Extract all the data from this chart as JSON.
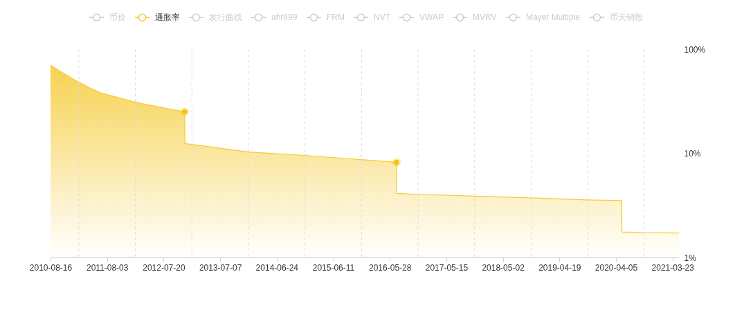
{
  "chart_data": {
    "type": "area",
    "legend": "top",
    "log": "y",
    "x": [
      "2010-08-16",
      "2010-11-09",
      "2011-02-04",
      "2011-04-30",
      "2011-06-28",
      "2012-01-24",
      "2012-06-21",
      "2012-11-28",
      "2012-11-29",
      "2013-12-31",
      "2014-12-13",
      "2015-11-30",
      "2016-07-09",
      "2016-07-10",
      "2016-11-16",
      "2018-02-19",
      "2018-10-22",
      "2019-10-08",
      "2020-05-11",
      "2020-05-12",
      "2020-09-21",
      "2021-05-02"
    ],
    "series": [
      {
        "name": "币价",
        "color": "#cccccc",
        "values": [
          null,
          null,
          null,
          null,
          null,
          null,
          null,
          null,
          null,
          null,
          null,
          null,
          null,
          null,
          null,
          null,
          null,
          null,
          null,
          null,
          null,
          null
        ]
      },
      {
        "name": "通胀率",
        "color": "#f5ca31",
        "values": [
          70,
          58,
          48.5,
          41.5,
          38,
          31,
          27.8,
          25,
          12.4,
          10.3,
          9.55,
          8.7,
          8.2,
          4.12,
          4.04,
          3.84,
          3.73,
          3.57,
          3.52,
          1.76,
          1.73,
          1.72
        ]
      },
      {
        "name": "发行曲线",
        "color": "#cccccc",
        "values": [
          null,
          null,
          null,
          null,
          null,
          null,
          null,
          null,
          null,
          null,
          null,
          null,
          null,
          null,
          null,
          null,
          null,
          null,
          null,
          null,
          null,
          null
        ]
      },
      {
        "name": "ahr999",
        "color": "#cccccc",
        "values": [
          null,
          null,
          null,
          null,
          null,
          null,
          null,
          null,
          null,
          null,
          null,
          null,
          null,
          null,
          null,
          null,
          null,
          null,
          null,
          null,
          null,
          null
        ]
      },
      {
        "name": "FRM",
        "color": "#cccccc",
        "values": [
          null,
          null,
          null,
          null,
          null,
          null,
          null,
          null,
          null,
          null,
          null,
          null,
          null,
          null,
          null,
          null,
          null,
          null,
          null,
          null,
          null,
          null
        ]
      },
      {
        "name": "NVT",
        "color": "#cccccc",
        "values": [
          null,
          null,
          null,
          null,
          null,
          null,
          null,
          null,
          null,
          null,
          null,
          null,
          null,
          null,
          null,
          null,
          null,
          null,
          null,
          null,
          null,
          null
        ]
      },
      {
        "name": "VWAP",
        "color": "#cccccc",
        "values": [
          null,
          null,
          null,
          null,
          null,
          null,
          null,
          null,
          null,
          null,
          null,
          null,
          null,
          null,
          null,
          null,
          null,
          null,
          null,
          null,
          null,
          null
        ]
      },
      {
        "name": "MVRV",
        "color": "#cccccc",
        "values": [
          null,
          null,
          null,
          null,
          null,
          null,
          null,
          null,
          null,
          null,
          null,
          null,
          null,
          null,
          null,
          null,
          null,
          null,
          null,
          null,
          null,
          null
        ]
      },
      {
        "name": "Mayer Multiple",
        "color": "#cccccc",
        "values": [
          null,
          null,
          null,
          null,
          null,
          null,
          null,
          null,
          null,
          null,
          null,
          null,
          null,
          null,
          null,
          null,
          null,
          null,
          null,
          null,
          null,
          null
        ]
      },
      {
        "name": "币天销毁",
        "color": "#cccccc",
        "values": [
          null,
          null,
          null,
          null,
          null,
          null,
          null,
          null,
          null,
          null,
          null,
          null,
          null,
          null,
          null,
          null,
          null,
          null,
          null,
          null,
          null,
          null
        ]
      },
      {
        "type": "scatter",
        "marker": "circle",
        "color": "#f5c211",
        "x": [
          "2012-11-28",
          "2016-07-09"
        ],
        "values": [
          25,
          8.2
        ]
      }
    ],
    "xlim": [
      "2010-08-16",
      "2021-05-02"
    ],
    "xticks": [
      "2010-08-16",
      "2011-08-03",
      "2012-07-20",
      "2013-07-07",
      "2014-06-24",
      "2015-06-11",
      "2016-05-28",
      "2017-05-15",
      "2018-05-02",
      "2019-04-19",
      "2020-04-05",
      "2021-03-23"
    ],
    "ylim": [
      1,
      100
    ],
    "yticks": [
      {
        "value": 1,
        "label": "1%"
      },
      {
        "value": 10,
        "label": "10%"
      },
      {
        "value": 100,
        "label": "100%"
      }
    ],
    "ref_lines": [
      {
        "axis": "x",
        "value": "2011-02-08",
        "color": "#dddddd",
        "line_style": "dashed"
      },
      {
        "axis": "x",
        "value": "2012-01-26",
        "color": "#dddddd",
        "line_style": "dashed"
      },
      {
        "axis": "x",
        "value": "2013-01-12",
        "color": "#dddddd",
        "line_style": "dashed"
      },
      {
        "axis": "x",
        "value": "2013-12-30",
        "color": "#dddddd",
        "line_style": "dashed"
      },
      {
        "axis": "x",
        "value": "2014-12-17",
        "color": "#dddddd",
        "line_style": "dashed"
      },
      {
        "axis": "x",
        "value": "2015-12-04",
        "color": "#dddddd",
        "line_style": "dashed"
      },
      {
        "axis": "x",
        "value": "2016-11-20",
        "color": "#dddddd",
        "line_style": "dashed"
      },
      {
        "axis": "x",
        "value": "2017-11-07",
        "color": "#dddddd",
        "line_style": "dashed"
      },
      {
        "axis": "x",
        "value": "2018-10-25",
        "color": "#dddddd",
        "line_style": "dashed"
      },
      {
        "axis": "x",
        "value": "2019-10-12",
        "color": "#dddddd",
        "line_style": "dashed"
      },
      {
        "axis": "x",
        "value": "2020-09-28",
        "color": "#dddddd",
        "line_style": "dashed"
      }
    ]
  }
}
